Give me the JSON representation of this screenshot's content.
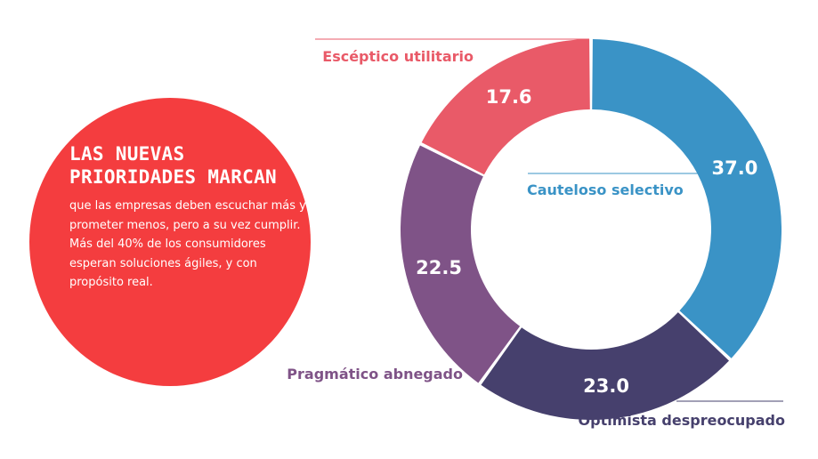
{
  "intro": {
    "title_lines": [
      "LAS NUEVAS",
      "PRIORIDADES MARCAN"
    ],
    "body_lines": [
      "que las empresas deben escuchar más y",
      "prometer menos, pero a su vez cumplir.",
      "Más del 40% de los consumidores",
      "esperan soluciones ágiles, y con",
      "propósito real."
    ]
  },
  "chart_data": {
    "type": "pie",
    "variant": "donut",
    "start_angle_deg": 0,
    "direction": "clockwise",
    "series": [
      {
        "name": "Cauteloso selectivo",
        "value": 37.0,
        "label": "37.0",
        "color": "#3a93c6"
      },
      {
        "name": "Optimista despreocupado",
        "value": 23.0,
        "label": "23.0",
        "color": "#46406d"
      },
      {
        "name": "Pragmático abnegado",
        "value": 22.5,
        "label": "22.5",
        "color": "#7f5387"
      },
      {
        "name": "Escéptico utilitario",
        "value": 17.6,
        "label": "17.6",
        "color": "#e95a68"
      }
    ]
  }
}
